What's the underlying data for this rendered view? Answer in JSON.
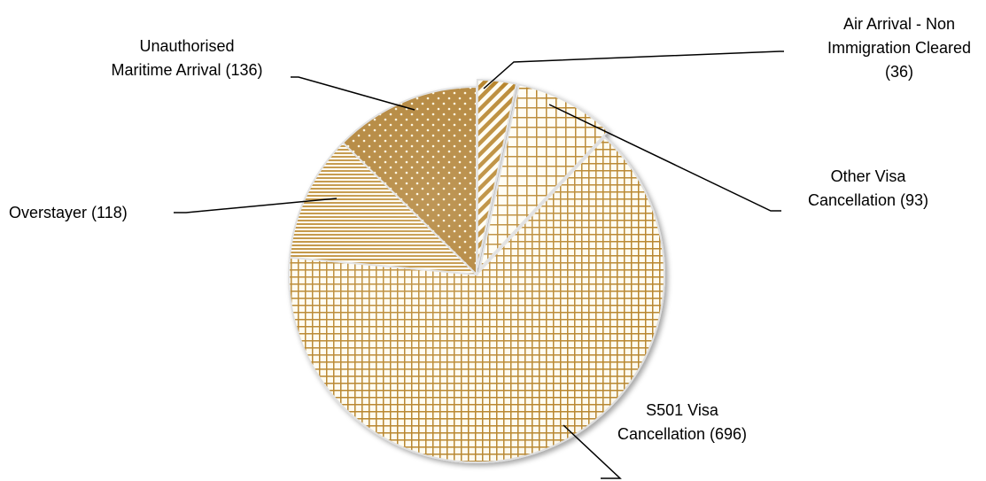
{
  "chart_data": {
    "type": "pie",
    "title": "",
    "slices": [
      {
        "label": "Air Arrival - Non Immigration Cleared (36)",
        "value": 36,
        "lines": [
          "Air Arrival - Non",
          "Immigration Cleared",
          "(36)"
        ],
        "pattern": "diagonal-stripes"
      },
      {
        "label": "Other Visa Cancellation (93)",
        "value": 93,
        "lines": [
          "Other Visa",
          "Cancellation (93)"
        ],
        "pattern": "large-grid"
      },
      {
        "label": "S501 Visa Cancellation (696)",
        "value": 696,
        "lines": [
          "S501 Visa",
          "Cancellation (696)"
        ],
        "pattern": "small-grid"
      },
      {
        "label": "Overstayer (118)",
        "value": 118,
        "lines": [
          "Overstayer (118)"
        ],
        "pattern": "horizontal-lines"
      },
      {
        "label": "Unauthorised Maritime Arrival (136)",
        "value": 136,
        "lines": [
          "Unauthorised",
          "Maritime Arrival (136)"
        ],
        "pattern": "dots"
      }
    ],
    "colors": {
      "accent": "#b8862f",
      "light": "#fffdf3"
    },
    "legend": "none (slices labelled with leader lines)"
  }
}
